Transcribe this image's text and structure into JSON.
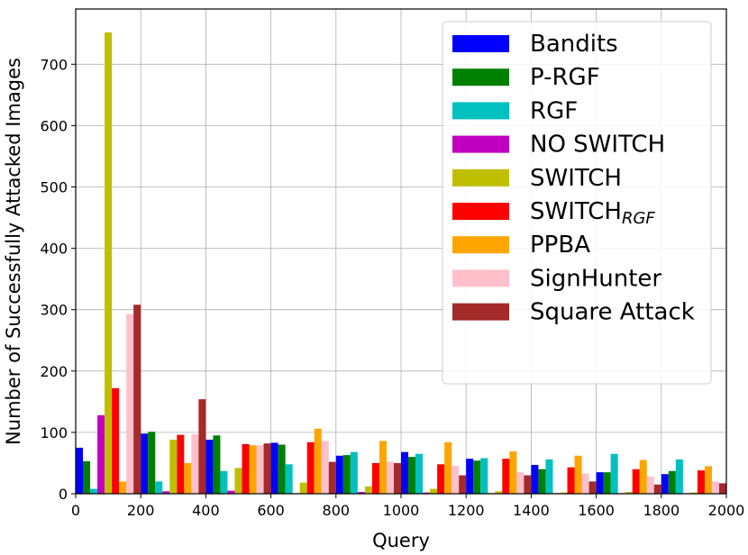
{
  "chart_data": {
    "type": "bar",
    "title": "",
    "xlabel": "Query",
    "ylabel": "Number of Successfully Attacked Images",
    "xlim": [
      0,
      2000
    ],
    "ylim": [
      0,
      790
    ],
    "x_ticks": [
      "0",
      "200",
      "400",
      "600",
      "800",
      "1000",
      "1200",
      "1400",
      "1600",
      "1800",
      "2000"
    ],
    "y_ticks": [
      "0",
      "100",
      "200",
      "300",
      "400",
      "500",
      "600",
      "700"
    ],
    "x_tick_values": [
      0,
      200,
      400,
      600,
      800,
      1000,
      1200,
      1400,
      1600,
      1800,
      2000
    ],
    "y_tick_values": [
      0,
      100,
      200,
      300,
      400,
      500,
      600,
      700
    ],
    "grid": true,
    "legend_position": "top-right",
    "bin_starts": [
      0,
      200,
      400,
      600,
      800,
      1000,
      1200,
      1400,
      1600,
      1800
    ],
    "bin_width": 200,
    "series": [
      {
        "name": "Bandits",
        "color": "#0000ff",
        "values": [
          75,
          98,
          88,
          83,
          62,
          68,
          57,
          47,
          35,
          32
        ]
      },
      {
        "name": "P-RGF",
        "color": "#008000",
        "values": [
          53,
          101,
          95,
          80,
          63,
          60,
          54,
          40,
          35,
          37
        ]
      },
      {
        "name": "RGF",
        "color": "#00c0c0",
        "values": [
          8,
          20,
          37,
          48,
          68,
          65,
          58,
          56,
          65,
          56
        ]
      },
      {
        "name": "NO SWITCH",
        "color": "#c000c0",
        "values": [
          128,
          4,
          5,
          1,
          3,
          2,
          1,
          1,
          1,
          1
        ]
      },
      {
        "name": "SWITCH",
        "color": "#bfbf00",
        "values": [
          752,
          88,
          42,
          18,
          12,
          8,
          4,
          2,
          3,
          2
        ]
      },
      {
        "name": "SWITCH",
        "name_sub": "RGF",
        "color": "#ff0000",
        "values": [
          172,
          96,
          81,
          84,
          50,
          48,
          57,
          43,
          40,
          38
        ]
      },
      {
        "name": "PPBA",
        "color": "#ffa500",
        "values": [
          20,
          50,
          79,
          106,
          86,
          84,
          69,
          62,
          55,
          45
        ]
      },
      {
        "name": "SignHunter",
        "color": "#ffc0cb",
        "values": [
          293,
          97,
          79,
          86,
          52,
          45,
          35,
          33,
          28,
          20
        ]
      },
      {
        "name": "Square Attack",
        "color": "#a52a2a",
        "values": [
          308,
          154,
          82,
          52,
          50,
          30,
          30,
          20,
          15,
          17
        ]
      }
    ]
  }
}
